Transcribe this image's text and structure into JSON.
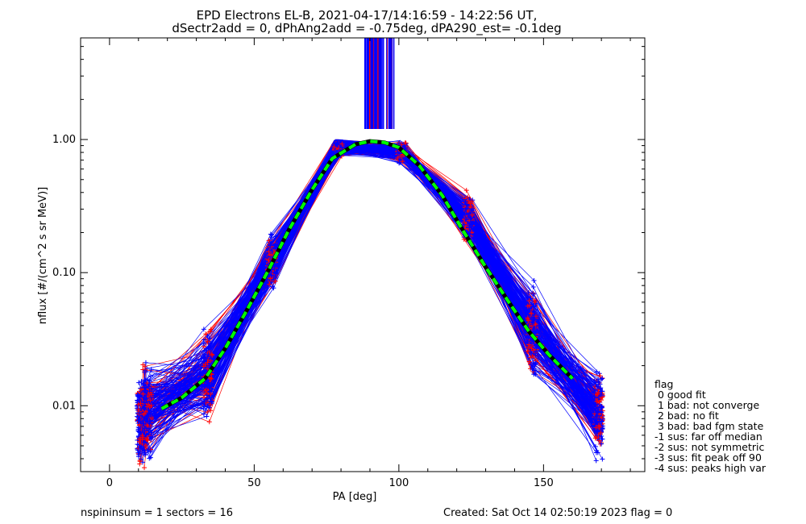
{
  "chart_data": {
    "type": "line",
    "title_line1": "EPD Electrons EL-B, 2021-04-17/14:16:59 - 14:22:56 UT,",
    "title_line2": "dSectr2add = 0, dPhAng2add = -0.75deg, dPA290_est=  -0.1deg",
    "xlabel": "PA [deg]",
    "ylabel": "nflux [#/(cm^2 s sr MeV)]",
    "xlim": [
      -10,
      185
    ],
    "ylim": [
      0.0032,
      5.8
    ],
    "yscale": "log",
    "x_ticks": [
      0,
      50,
      100,
      150
    ],
    "x_tick_labels": [
      "0",
      "50",
      "100",
      "150"
    ],
    "y_ticks": [
      0.01,
      0.1,
      1.0
    ],
    "y_tick_labels": [
      "0.01",
      "0.10",
      "1.00"
    ],
    "series_colors": {
      "red": "#ff0000",
      "blue": "#0000ff",
      "fit": "#00ff00"
    },
    "sector_pa": [
      11,
      13,
      34,
      56,
      79,
      101,
      124,
      146,
      169
    ],
    "median_profile": [
      0.0075,
      0.009,
      0.017,
      0.12,
      0.88,
      0.82,
      0.26,
      0.036,
      0.009
    ],
    "fit_curve": {
      "x": [
        18,
        25,
        33,
        40,
        47,
        55,
        62,
        70,
        77,
        85,
        90,
        95,
        100,
        107,
        115,
        122,
        130,
        138,
        145,
        152,
        160
      ],
      "y": [
        0.0095,
        0.0115,
        0.016,
        0.027,
        0.05,
        0.105,
        0.21,
        0.42,
        0.72,
        0.92,
        0.97,
        0.95,
        0.87,
        0.64,
        0.38,
        0.21,
        0.11,
        0.06,
        0.036,
        0.024,
        0.016
      ]
    },
    "legend": {
      "title": "flag",
      "items": [
        " 0 good fit",
        " 1 bad: not converge",
        " 2 bad: no fit",
        " 3 bad: bad fgm state",
        "-1 sus: far off median",
        "-2 sus: not symmetric",
        "-3 sus: fit peak off 90",
        "-4 sus: peaks high var"
      ]
    },
    "footer_left": "nspininsum =  1  sectors = 16",
    "footer_right": "Created: Sat Oct 14 02:50:19 2023   flag = 0"
  }
}
